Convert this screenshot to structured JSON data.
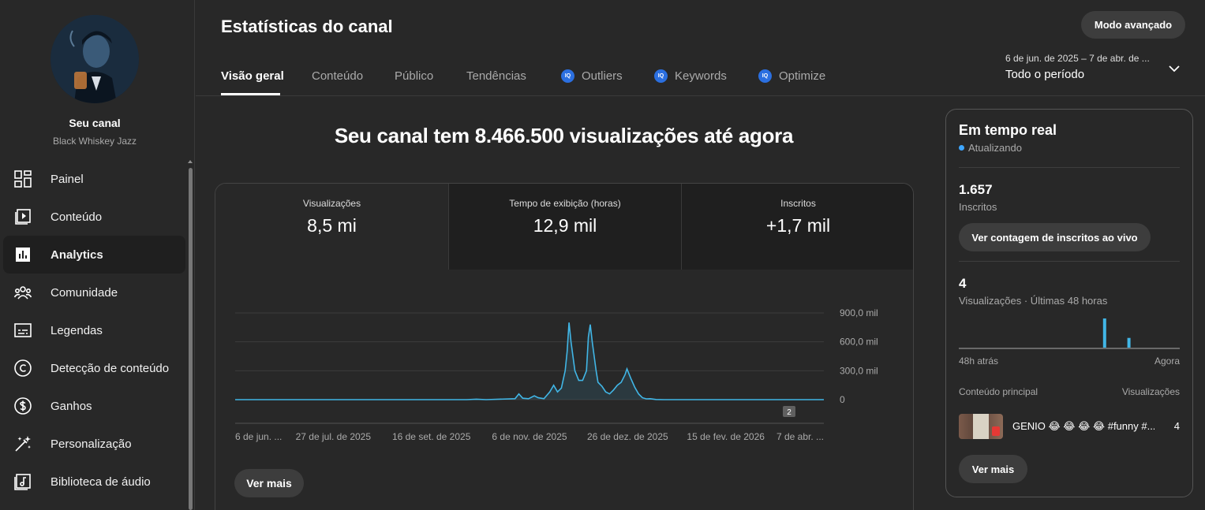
{
  "sidebar": {
    "channel_title": "Seu canal",
    "channel_name": "Black Whiskey Jazz",
    "items": [
      {
        "label": "Painel",
        "icon": "dashboard-icon"
      },
      {
        "label": "Conteúdo",
        "icon": "content-icon"
      },
      {
        "label": "Analytics",
        "icon": "analytics-icon",
        "active": true
      },
      {
        "label": "Comunidade",
        "icon": "community-icon"
      },
      {
        "label": "Legendas",
        "icon": "subtitles-icon"
      },
      {
        "label": "Detecção de conteúdo",
        "icon": "copyright-icon"
      },
      {
        "label": "Ganhos",
        "icon": "earn-icon"
      },
      {
        "label": "Personalização",
        "icon": "customization-icon"
      },
      {
        "label": "Biblioteca de áudio",
        "icon": "audio-library-icon"
      }
    ]
  },
  "header": {
    "title": "Estatísticas do canal",
    "advanced_button": "Modo avançado",
    "tabs": [
      {
        "label": "Visão geral",
        "active": true
      },
      {
        "label": "Conteúdo"
      },
      {
        "label": "Público"
      },
      {
        "label": "Tendências"
      },
      {
        "label": "Outliers",
        "badge": "IQ"
      },
      {
        "label": "Keywords",
        "badge": "IQ"
      },
      {
        "label": "Optimize",
        "badge": "IQ"
      }
    ],
    "date_range": "6 de jun. de 2025 – 7 de abr. de ...",
    "date_period": "Todo o período"
  },
  "main": {
    "headline": "Seu canal tem 8.466.500 visualizações até agora",
    "metrics": [
      {
        "label": "Visualizações",
        "value": "8,5 mi"
      },
      {
        "label": "Tempo de exibição (horas)",
        "value": "12,9 mil"
      },
      {
        "label": "Inscritos",
        "value": "+1,7 mil"
      }
    ],
    "see_more": "Ver mais",
    "marker_badge": "2"
  },
  "chart_data": {
    "type": "line",
    "series_color": "#41b6e6",
    "y_ticks": [
      "900,0 mil",
      "600,0 mil",
      "300,0 mil",
      "0"
    ],
    "x_ticks": [
      "6 de jun. ...",
      "27 de jul. de 2025",
      "16 de set. de 2025",
      "6 de nov. de 2025",
      "26 de dez. de 2025",
      "15 de fev. de 2026",
      "7 de abr. ..."
    ],
    "ylim": [
      0,
      900000
    ],
    "x_days": 305,
    "points": [
      [
        0,
        0
      ],
      [
        120,
        0
      ],
      [
        125,
        5000
      ],
      [
        130,
        0
      ],
      [
        145,
        10000
      ],
      [
        147,
        60000
      ],
      [
        149,
        15000
      ],
      [
        152,
        10000
      ],
      [
        155,
        40000
      ],
      [
        157,
        20000
      ],
      [
        160,
        10000
      ],
      [
        163,
        80000
      ],
      [
        165,
        150000
      ],
      [
        167,
        80000
      ],
      [
        169,
        120000
      ],
      [
        171,
        300000
      ],
      [
        172,
        500000
      ],
      [
        173,
        800000
      ],
      [
        174,
        600000
      ],
      [
        176,
        300000
      ],
      [
        178,
        200000
      ],
      [
        180,
        200000
      ],
      [
        182,
        300000
      ],
      [
        183,
        650000
      ],
      [
        184,
        780000
      ],
      [
        185,
        600000
      ],
      [
        187,
        300000
      ],
      [
        188,
        180000
      ],
      [
        190,
        140000
      ],
      [
        192,
        80000
      ],
      [
        194,
        60000
      ],
      [
        196,
        100000
      ],
      [
        198,
        150000
      ],
      [
        200,
        180000
      ],
      [
        202,
        260000
      ],
      [
        203,
        320000
      ],
      [
        205,
        220000
      ],
      [
        207,
        130000
      ],
      [
        209,
        60000
      ],
      [
        211,
        20000
      ],
      [
        213,
        8000
      ],
      [
        215,
        10000
      ],
      [
        218,
        2000
      ],
      [
        222,
        0
      ],
      [
        305,
        0
      ]
    ]
  },
  "realtime": {
    "title": "Em tempo real",
    "status": "Atualizando",
    "subscribers_value": "1.657",
    "subscribers_label": "Inscritos",
    "live_button": "Ver contagem de inscritos ao vivo",
    "views_value": "4",
    "views_label": "Visualizações · Últimas 48 horas",
    "mini_chart": {
      "bars": [
        {
          "pos": 0.66,
          "value": 3
        },
        {
          "pos": 0.77,
          "value": 1
        }
      ],
      "max": 3
    },
    "left_label": "48h atrás",
    "right_label": "Agora",
    "top_content_header": "Conteúdo principal",
    "views_header": "Visualizações",
    "top_item_title": "GENIO 😂 😂 😂 😂 #funny #...",
    "top_item_views": "4",
    "see_more": "Ver mais"
  }
}
